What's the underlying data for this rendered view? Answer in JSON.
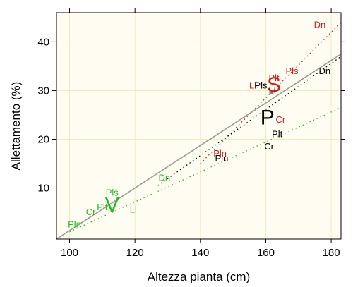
{
  "chart_data": {
    "type": "scatter",
    "xlabel": "Altezza pianta (cm)",
    "ylabel": "Allettamento (%)",
    "xlim": [
      96,
      183
    ],
    "ylim": [
      -0.5,
      46
    ],
    "x_ticks": [
      100,
      120,
      140,
      160,
      180
    ],
    "y_ticks": [
      10,
      20,
      30,
      40
    ],
    "grid": true,
    "colors": {
      "S": "#cc2222",
      "P": "#000000",
      "V": "#22bb22",
      "overall": "#9a9a9a",
      "background": "#fffdf2",
      "grid": "#f3ebc0"
    },
    "groups": [
      {
        "name": "S",
        "label_point": {
          "x": 162.5,
          "y": 31.2
        },
        "color": "#cc2222",
        "trend": {
          "x1": 140,
          "y1": 15,
          "x2": 183,
          "y2": 44
        },
        "points": [
          {
            "label": "Dn",
            "x": 176.5,
            "y": 43.5
          },
          {
            "label": "Pls",
            "x": 168,
            "y": 34
          },
          {
            "label": "Plt",
            "x": 162.5,
            "y": 32.5
          },
          {
            "label": "Ll",
            "x": 156,
            "y": 31
          },
          {
            "label": "Cr",
            "x": 164.5,
            "y": 24
          },
          {
            "label": "Pln",
            "x": 146,
            "y": 17
          }
        ]
      },
      {
        "name": "P",
        "label_point": {
          "x": 160.5,
          "y": 24.5
        },
        "color": "#000000",
        "trend": {
          "x1": 127,
          "y1": 10.5,
          "x2": 183,
          "y2": 37
        },
        "points": [
          {
            "label": "Dn",
            "x": 178,
            "y": 34
          },
          {
            "label": "Pls",
            "x": 158.5,
            "y": 31
          },
          {
            "label": "Ll",
            "x": 162,
            "y": 30
          },
          {
            "label": "Plt",
            "x": 163.5,
            "y": 21
          },
          {
            "label": "Cr",
            "x": 161,
            "y": 18.5
          },
          {
            "label": "Pln",
            "x": 146.5,
            "y": 16
          }
        ]
      },
      {
        "name": "V",
        "label_point": {
          "x": 113,
          "y": 6.5
        },
        "color": "#22bb22",
        "trend": {
          "x1": 100,
          "y1": 1,
          "x2": 183,
          "y2": 26.5
        },
        "points": [
          {
            "label": "Pls",
            "x": 113,
            "y": 9
          },
          {
            "label": "Plt",
            "x": 110,
            "y": 6
          },
          {
            "label": "Cr",
            "x": 106.5,
            "y": 5
          },
          {
            "label": "Pln",
            "x": 101.5,
            "y": 2.5
          },
          {
            "label": "Ll",
            "x": 119.5,
            "y": 5.5
          },
          {
            "label": "Dn",
            "x": 129,
            "y": 12
          }
        ]
      }
    ],
    "overall_trend": {
      "x1": 96,
      "y1": -0.5,
      "x2": 183,
      "y2": 37.5
    }
  }
}
